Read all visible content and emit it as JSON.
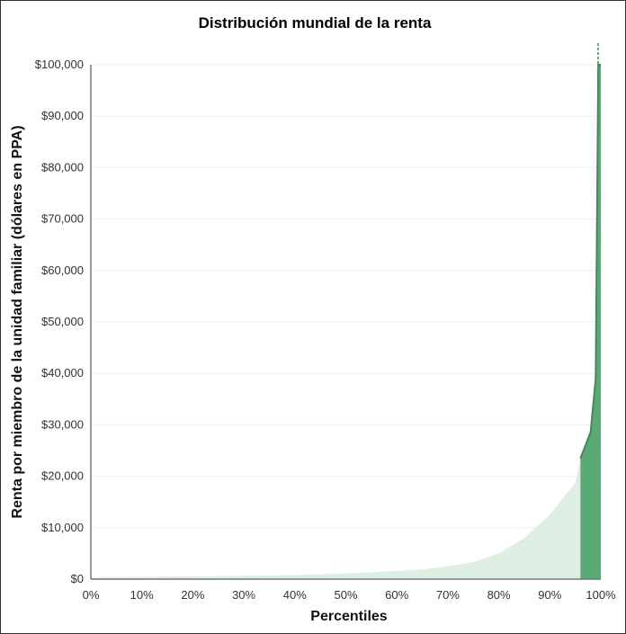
{
  "chart_data": {
    "type": "area",
    "title": "Distribución mundial de la renta",
    "xlabel": "Percentiles",
    "ylabel": "Renta por miembro de la unidad familiar (dólares en PPA)",
    "xlim": [
      0,
      100
    ],
    "ylim": [
      0,
      100000
    ],
    "x_ticks": [
      0,
      10,
      20,
      30,
      40,
      50,
      60,
      70,
      80,
      90,
      100
    ],
    "x_tick_labels": [
      "0%",
      "10%",
      "20%",
      "30%",
      "40%",
      "50%",
      "60%",
      "70%",
      "80%",
      "90%",
      "100%"
    ],
    "y_ticks": [
      0,
      10000,
      20000,
      30000,
      40000,
      50000,
      60000,
      70000,
      80000,
      90000,
      100000
    ],
    "y_tick_labels": [
      "$0",
      "$10,000",
      "$20,000",
      "$30,000",
      "$40,000",
      "$50,000",
      "$60,000",
      "$70,000",
      "$80,000",
      "$90,000",
      "$100,000"
    ],
    "grid": true,
    "series": [
      {
        "color": "#dcefe2",
        "x": [
          0,
          5,
          10,
          15,
          20,
          25,
          30,
          35,
          40,
          45,
          50,
          55,
          60,
          65,
          70,
          75,
          80,
          85,
          90,
          95,
          96
        ],
        "y": [
          300,
          400,
          450,
          500,
          550,
          600,
          650,
          700,
          800,
          950,
          1100,
          1350,
          1600,
          1900,
          2500,
          3300,
          5000,
          8000,
          12500,
          18800,
          23500
        ]
      },
      {
        "color": "#5aaa76",
        "x": [
          96,
          97,
          98,
          99,
          99.5,
          100
        ],
        "y": [
          23500,
          26000,
          28600,
          39000,
          100000,
          100000
        ]
      }
    ],
    "colors": {
      "highlight_line": "#3d8d5b",
      "dashed_marker": "#3d8d5b"
    }
  }
}
